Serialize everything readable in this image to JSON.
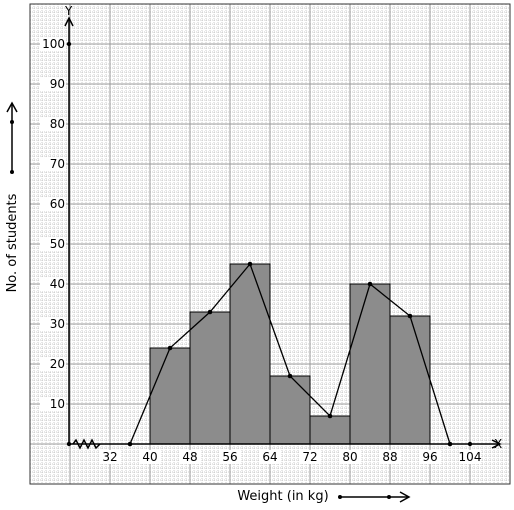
{
  "chart_data": {
    "type": "bar",
    "title": "",
    "xlabel": "Weight (in kg)",
    "ylabel": "No. of students",
    "x_axis_letter": "X",
    "y_axis_letter": "Y",
    "x_tick_labels": [
      "32",
      "40",
      "48",
      "56",
      "64",
      "72",
      "80",
      "88",
      "96",
      "104"
    ],
    "y_tick_labels": [
      "10",
      "20",
      "30",
      "40",
      "50",
      "60",
      "70",
      "80",
      "90",
      "100"
    ],
    "ylim": [
      0,
      100
    ],
    "bins": [
      {
        "from": 40,
        "to": 48,
        "value": 24
      },
      {
        "from": 48,
        "to": 56,
        "value": 33
      },
      {
        "from": 56,
        "to": 64,
        "value": 45
      },
      {
        "from": 64,
        "to": 72,
        "value": 17
      },
      {
        "from": 72,
        "to": 80,
        "value": 7
      },
      {
        "from": 80,
        "to": 88,
        "value": 40
      },
      {
        "from": 88,
        "to": 96,
        "value": 32
      }
    ],
    "polygon": {
      "x": [
        36,
        44,
        52,
        60,
        68,
        76,
        84,
        92,
        100
      ],
      "y": [
        0,
        24,
        33,
        45,
        17,
        7,
        40,
        32,
        0
      ]
    },
    "grid": true,
    "legend": "none",
    "colors": {
      "bar_fill": "#8c8c8c",
      "grid": "#9a9a9a",
      "axis": "#000000"
    }
  }
}
